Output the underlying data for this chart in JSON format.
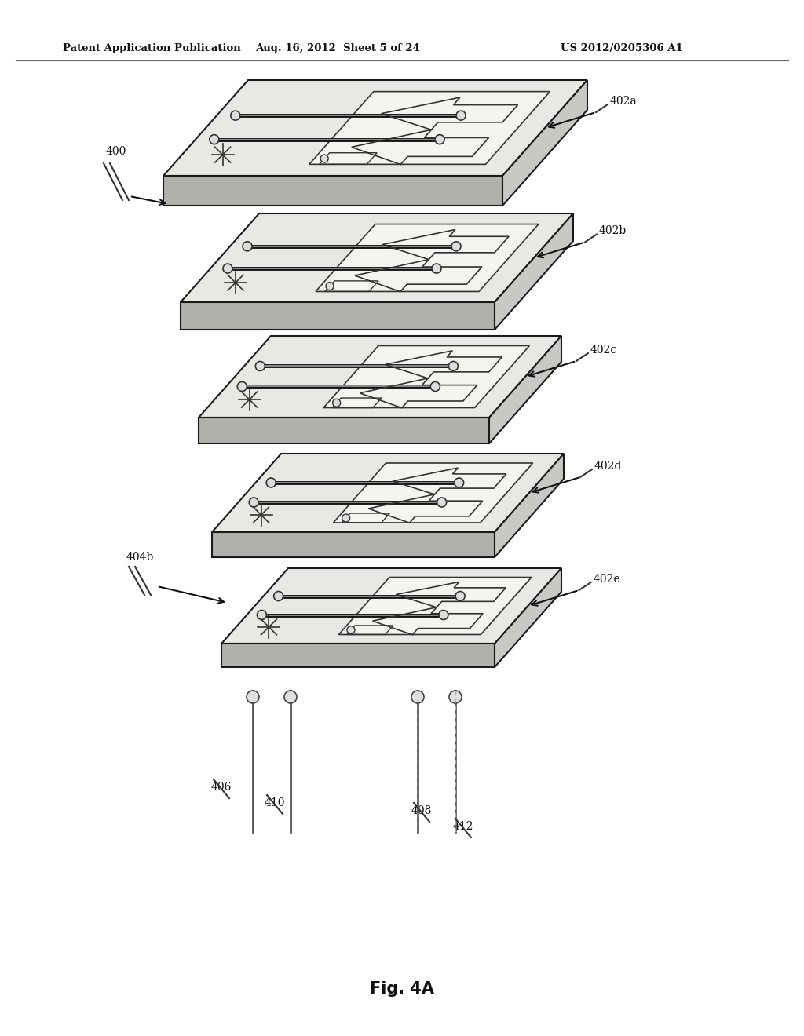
{
  "bg_color": "#ffffff",
  "header_left": "Patent Application Publication",
  "header_mid": "Aug. 16, 2012  Sheet 5 of 24",
  "header_right": "US 2012/0205306 A1",
  "fig_label": "Fig. 4A",
  "layer_labels": [
    "402a",
    "402b",
    "402c",
    "402d",
    "402e"
  ],
  "plate_top_color": "#e8e8e4",
  "plate_side_color": "#c8c8c4",
  "plate_front_color": "#b0b0ac",
  "plate_edge_color": "#1a1a1a",
  "channel_dark": "#222222",
  "channel_mid": "#888888",
  "feature_edge": "#333333",
  "text_color": "#111111",
  "header_fontsize": 9.5,
  "label_fontsize": 10,
  "fig_fontsize": 15
}
